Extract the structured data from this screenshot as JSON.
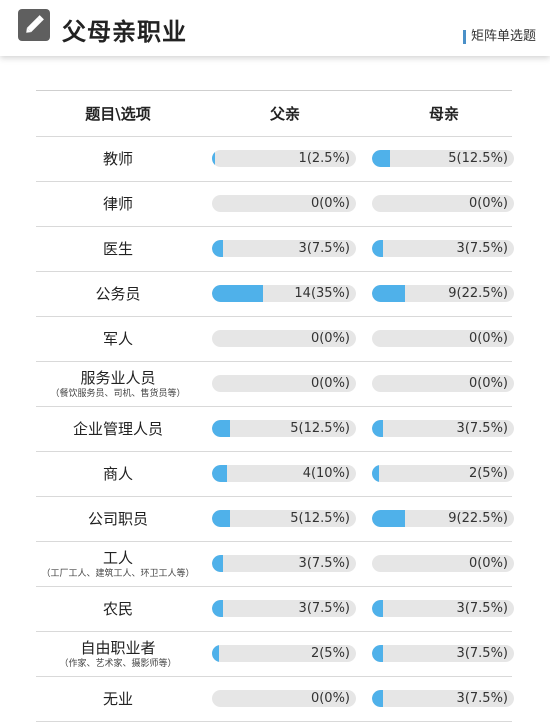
{
  "header": {
    "title": "父母亲职业",
    "subtitle": "矩阵单选题",
    "icon": "pencil-icon"
  },
  "table": {
    "columns": [
      "题目\\选项",
      "父亲",
      "母亲"
    ],
    "rows": [
      {
        "label": "教师",
        "note": "",
        "father": {
          "text": "1(2.5%)",
          "pct": 2.5
        },
        "mother": {
          "text": "5(12.5%)",
          "pct": 12.5
        }
      },
      {
        "label": "律师",
        "note": "",
        "father": {
          "text": "0(0%)",
          "pct": 0
        },
        "mother": {
          "text": "0(0%)",
          "pct": 0
        }
      },
      {
        "label": "医生",
        "note": "",
        "father": {
          "text": "3(7.5%)",
          "pct": 7.5
        },
        "mother": {
          "text": "3(7.5%)",
          "pct": 7.5
        }
      },
      {
        "label": "公务员",
        "note": "",
        "father": {
          "text": "14(35%)",
          "pct": 35
        },
        "mother": {
          "text": "9(22.5%)",
          "pct": 22.5
        }
      },
      {
        "label": "军人",
        "note": "",
        "father": {
          "text": "0(0%)",
          "pct": 0
        },
        "mother": {
          "text": "0(0%)",
          "pct": 0
        }
      },
      {
        "label": "服务业人员",
        "note": "（餐饮服务员、司机、售货员等）",
        "father": {
          "text": "0(0%)",
          "pct": 0
        },
        "mother": {
          "text": "0(0%)",
          "pct": 0
        }
      },
      {
        "label": "企业管理人员",
        "note": "",
        "father": {
          "text": "5(12.5%)",
          "pct": 12.5
        },
        "mother": {
          "text": "3(7.5%)",
          "pct": 7.5
        }
      },
      {
        "label": "商人",
        "note": "",
        "father": {
          "text": "4(10%)",
          "pct": 10
        },
        "mother": {
          "text": "2(5%)",
          "pct": 5
        }
      },
      {
        "label": "公司职员",
        "note": "",
        "father": {
          "text": "5(12.5%)",
          "pct": 12.5
        },
        "mother": {
          "text": "9(22.5%)",
          "pct": 22.5
        }
      },
      {
        "label": "工人",
        "note": "（工厂工人、建筑工人、环卫工人等）",
        "father": {
          "text": "3(7.5%)",
          "pct": 7.5
        },
        "mother": {
          "text": "0(0%)",
          "pct": 0
        }
      },
      {
        "label": "农民",
        "note": "",
        "father": {
          "text": "3(7.5%)",
          "pct": 7.5
        },
        "mother": {
          "text": "3(7.5%)",
          "pct": 7.5
        }
      },
      {
        "label": "自由职业者",
        "note": "（作家、艺术家、摄影师等）",
        "father": {
          "text": "2(5%)",
          "pct": 5
        },
        "mother": {
          "text": "3(7.5%)",
          "pct": 7.5
        }
      },
      {
        "label": "无业",
        "note": "",
        "father": {
          "text": "0(0%)",
          "pct": 0
        },
        "mother": {
          "text": "3(7.5%)",
          "pct": 7.5
        }
      }
    ]
  },
  "colors": {
    "bar_fill": "#4fb1ea",
    "bar_track": "#e6e6e6",
    "accent": "#4a90c8"
  }
}
